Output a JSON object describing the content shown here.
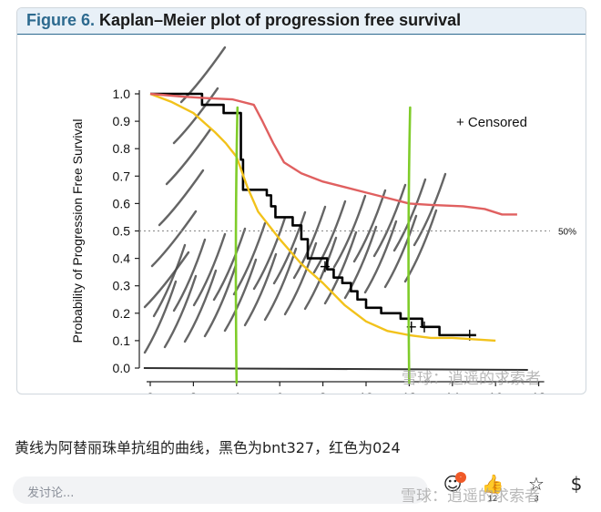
{
  "figure": {
    "label": "Figure 6.",
    "title": "Kaplan–Meier plot of progression free survival"
  },
  "chart_data": {
    "type": "line",
    "title": "Kaplan–Meier plot of progression free survival",
    "xlabel": "",
    "ylabel": "Probability of Progression Free Survival",
    "xlim": [
      0,
      18
    ],
    "ylim": [
      0,
      1
    ],
    "xticks": [
      "0",
      "2",
      "4",
      "6",
      "8",
      "10",
      "12",
      "14",
      "16",
      "18"
    ],
    "yticks": [
      "0.0",
      "0.1",
      "0.2",
      "0.3",
      "0.4",
      "0.5",
      "0.6",
      "0.7",
      "0.8",
      "0.9",
      "1.0"
    ],
    "legend": "+ Censored",
    "reference_line": {
      "y": 0.5,
      "label": "50%"
    },
    "annotation_lines": [
      {
        "x": 4.0,
        "color": "#7fcc2a"
      },
      {
        "x": 12.0,
        "color": "#7fcc2a"
      }
    ],
    "series": [
      {
        "name": "bnt327",
        "color": "#000000",
        "step": true,
        "x": [
          0,
          2.4,
          3.4,
          4.2,
          4.3,
          5.4,
          5.6,
          5.8,
          6.6,
          7.0,
          7.3,
          8.2,
          8.5,
          8.9,
          9.3,
          9.6,
          10.0,
          10.7,
          11.6,
          12.6,
          13.4,
          15.1
        ],
        "y": [
          1.0,
          0.96,
          0.93,
          0.76,
          0.65,
          0.63,
          0.59,
          0.55,
          0.52,
          0.47,
          0.4,
          0.36,
          0.33,
          0.31,
          0.28,
          0.25,
          0.22,
          0.2,
          0.18,
          0.15,
          0.12,
          0.12
        ],
        "censored": [
          [
            8.1,
            0.37
          ],
          [
            12.1,
            0.15
          ],
          [
            12.7,
            0.15
          ],
          [
            14.8,
            0.12
          ]
        ]
      },
      {
        "name": "阿替丽珠单抗组",
        "color": "#f2c21b",
        "step": false,
        "x": [
          0,
          1,
          2,
          3,
          3.5,
          4,
          4.5,
          5,
          6,
          7,
          8,
          9,
          10,
          11,
          12,
          13,
          14,
          15,
          16
        ],
        "y": [
          1.0,
          0.97,
          0.93,
          0.86,
          0.82,
          0.77,
          0.66,
          0.57,
          0.47,
          0.38,
          0.31,
          0.23,
          0.17,
          0.135,
          0.12,
          0.11,
          0.11,
          0.105,
          0.1
        ]
      },
      {
        "name": "024",
        "color": "#e06060",
        "step": false,
        "x": [
          0,
          1.5,
          2.5,
          3.8,
          4.8,
          5.2,
          5.7,
          6.2,
          7,
          8,
          9,
          10,
          11,
          12,
          13,
          14.5,
          15.5,
          16.3,
          17
        ],
        "y": [
          1.0,
          0.99,
          0.985,
          0.98,
          0.96,
          0.9,
          0.82,
          0.75,
          0.71,
          0.68,
          0.66,
          0.64,
          0.62,
          0.6,
          0.595,
          0.59,
          0.58,
          0.56,
          0.56
        ]
      }
    ]
  },
  "caption": "黄线为阿替丽珠单抗组的曲线，黑色为bnt327，红色为024",
  "bottom_bar": {
    "comment_placeholder": "发讨论...",
    "actions": [
      {
        "name": "comment",
        "icon": "comment-icon",
        "count": ""
      },
      {
        "name": "like",
        "icon": "like-icon",
        "count": "12"
      },
      {
        "name": "favorite",
        "icon": "star-icon",
        "count": "3"
      },
      {
        "name": "reward",
        "icon": "dollar-icon",
        "count": ""
      }
    ]
  },
  "watermark": "雪球：逍遥的求索者"
}
